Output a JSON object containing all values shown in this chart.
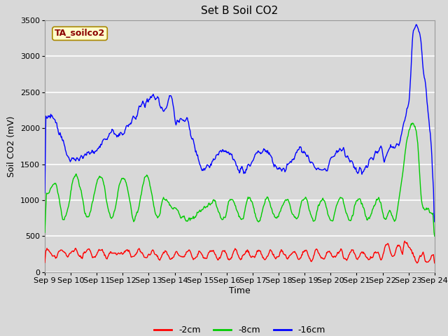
{
  "title": "Set B Soil CO2",
  "ylabel": "Soil CO2 (mV)",
  "xlabel": "Time",
  "legend_label": "TA_soilco2",
  "series_labels": [
    "-2cm",
    "-8cm",
    "-16cm"
  ],
  "series_colors": [
    "#ff0000",
    "#00cc00",
    "#0000ff"
  ],
  "ylim": [
    0,
    3500
  ],
  "yticks": [
    0,
    500,
    1000,
    1500,
    2000,
    2500,
    3000,
    3500
  ],
  "xtick_labels": [
    "Sep 9",
    "Sep 10",
    "Sep 11",
    "Sep 12",
    "Sep 13",
    "Sep 14",
    "Sep 15",
    "Sep 16",
    "Sep 17",
    "Sep 18",
    "Sep 19",
    "Sep 20",
    "Sep 21",
    "Sep 22",
    "Sep 23",
    "Sep 24"
  ],
  "fig_bg_color": "#d8d8d8",
  "plot_bg_color": "#d8d8d8",
  "title_fontsize": 11,
  "label_fontsize": 9,
  "tick_fontsize": 8,
  "legend_fontsize": 9,
  "line_width": 1.0,
  "grid_color": "#ffffff",
  "n_points": 720
}
